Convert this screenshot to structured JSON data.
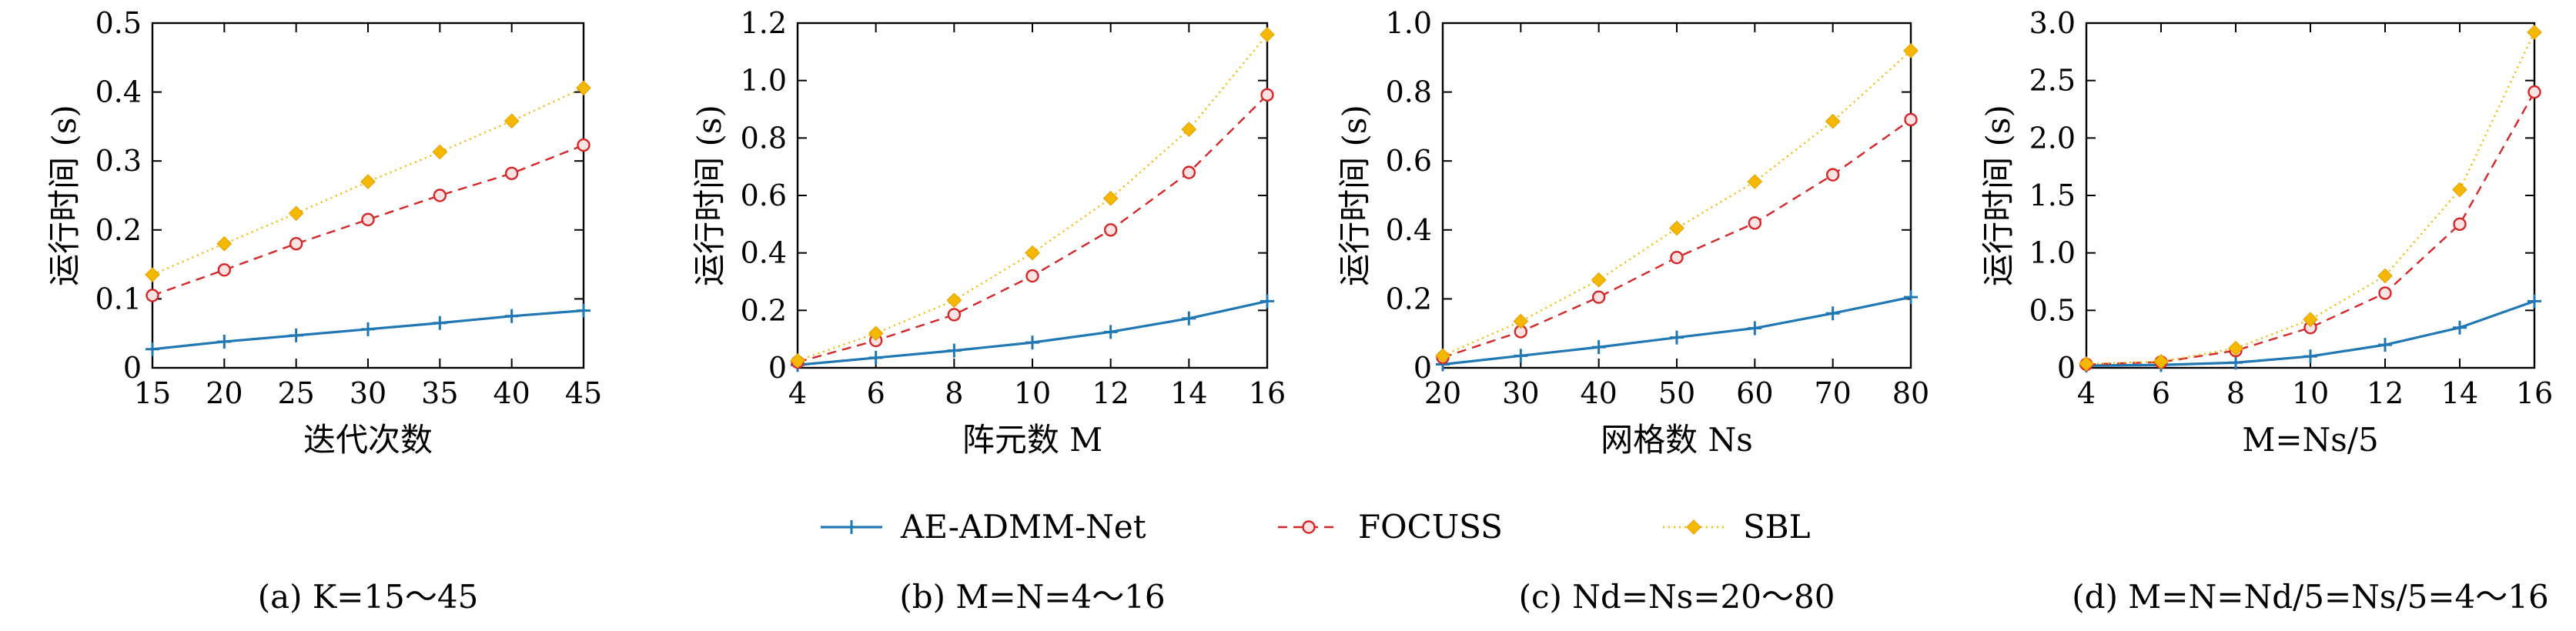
{
  "legend": {
    "placement": "bottom-center",
    "entries": [
      {
        "label": "AE-ADMM-Net",
        "color": "#1f77b4",
        "marker": "plus",
        "dash": "solid"
      },
      {
        "label": "FOCUSS",
        "color": "#d62728",
        "marker": "circle",
        "dash": "dashed"
      },
      {
        "label": "SBL",
        "color": "#f5b800",
        "marker": "diamond",
        "dash": "dotted"
      }
    ]
  },
  "chart_data": [
    {
      "type": "line",
      "caption": "(a) K=15～45",
      "xlabel": "迭代次数",
      "ylabel": "运行时间 (s)",
      "x": [
        15,
        20,
        25,
        30,
        35,
        40,
        45
      ],
      "xticks": [
        "15",
        "20",
        "25",
        "30",
        "35",
        "40",
        "45"
      ],
      "xlim": [
        15,
        45
      ],
      "ylim": [
        0,
        0.5
      ],
      "yticks": [
        "0",
        "0.1",
        "0.2",
        "0.3",
        "0.4",
        "0.5"
      ],
      "grid": false,
      "series": [
        {
          "name": "AE-ADMM-Net",
          "values": [
            0.027,
            0.038,
            0.047,
            0.056,
            0.065,
            0.075,
            0.083
          ]
        },
        {
          "name": "FOCUSS",
          "values": [
            0.105,
            0.142,
            0.18,
            0.215,
            0.25,
            0.282,
            0.323
          ]
        },
        {
          "name": "SBL",
          "values": [
            0.135,
            0.18,
            0.224,
            0.27,
            0.313,
            0.358,
            0.406
          ]
        }
      ]
    },
    {
      "type": "line",
      "caption": "(b) M=N=4～16",
      "xlabel": "阵元数 M",
      "ylabel": "运行时间 (s)",
      "x": [
        4,
        6,
        8,
        10,
        12,
        14,
        16
      ],
      "xticks": [
        "4",
        "6",
        "8",
        "10",
        "12",
        "14",
        "16"
      ],
      "xlim": [
        4,
        16
      ],
      "ylim": [
        0,
        1.2
      ],
      "yticks": [
        "0",
        "0.2",
        "0.4",
        "0.6",
        "0.8",
        "1.0",
        "1.2"
      ],
      "grid": false,
      "series": [
        {
          "name": "AE-ADMM-Net",
          "values": [
            0.01,
            0.035,
            0.06,
            0.088,
            0.125,
            0.172,
            0.232
          ]
        },
        {
          "name": "FOCUSS",
          "values": [
            0.02,
            0.095,
            0.185,
            0.32,
            0.48,
            0.68,
            0.95
          ]
        },
        {
          "name": "SBL",
          "values": [
            0.025,
            0.12,
            0.235,
            0.4,
            0.59,
            0.83,
            1.16
          ]
        }
      ]
    },
    {
      "type": "line",
      "caption": "(c) Nd=Ns=20～80",
      "xlabel": "网格数 Ns",
      "ylabel": "运行时间 (s)",
      "x": [
        20,
        30,
        40,
        50,
        60,
        70,
        80
      ],
      "xticks": [
        "20",
        "30",
        "40",
        "50",
        "60",
        "70",
        "80"
      ],
      "xlim": [
        20,
        80
      ],
      "ylim": [
        0,
        1.0
      ],
      "yticks": [
        "0",
        "0.2",
        "0.4",
        "0.6",
        "0.8",
        "1.0"
      ],
      "grid": false,
      "series": [
        {
          "name": "AE-ADMM-Net",
          "values": [
            0.01,
            0.035,
            0.06,
            0.088,
            0.115,
            0.158,
            0.205
          ]
        },
        {
          "name": "FOCUSS",
          "values": [
            0.03,
            0.105,
            0.205,
            0.32,
            0.42,
            0.56,
            0.72
          ]
        },
        {
          "name": "SBL",
          "values": [
            0.035,
            0.135,
            0.255,
            0.405,
            0.54,
            0.715,
            0.92
          ]
        }
      ]
    },
    {
      "type": "line",
      "caption": "(d) M=N=Nd/5=Ns/5=4～16",
      "xlabel": "M=Ns/5",
      "ylabel": "运行时间 (s)",
      "x": [
        4,
        6,
        8,
        10,
        12,
        14,
        16
      ],
      "xticks": [
        "4",
        "6",
        "8",
        "10",
        "12",
        "14",
        "16"
      ],
      "xlim": [
        4,
        16
      ],
      "ylim": [
        0,
        3.0
      ],
      "yticks": [
        "0",
        "0.5",
        "1.0",
        "1.5",
        "2.0",
        "2.5",
        "3.0"
      ],
      "grid": false,
      "series": [
        {
          "name": "AE-ADMM-Net",
          "values": [
            0.02,
            0.025,
            0.045,
            0.1,
            0.2,
            0.35,
            0.58
          ]
        },
        {
          "name": "FOCUSS",
          "values": [
            0.03,
            0.05,
            0.15,
            0.35,
            0.65,
            1.25,
            2.4
          ]
        },
        {
          "name": "SBL",
          "values": [
            0.035,
            0.055,
            0.17,
            0.42,
            0.8,
            1.55,
            2.92
          ]
        }
      ]
    }
  ]
}
